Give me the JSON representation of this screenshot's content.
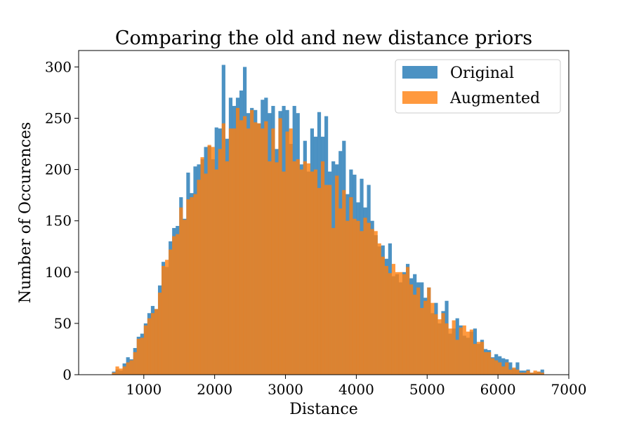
{
  "chart_data": {
    "type": "bar",
    "title": "Comparing the old and new distance priors",
    "xlabel": "Distance",
    "ylabel": "Number of Occurences",
    "xlim": [
      80,
      7000
    ],
    "ylim": [
      0,
      316
    ],
    "xticks": [
      1000,
      2000,
      3000,
      4000,
      5000,
      6000,
      7000
    ],
    "yticks": [
      0,
      50,
      100,
      150,
      200,
      250,
      300
    ],
    "grid": false,
    "legend_placement": "top-right",
    "bin_width": 50,
    "bin_start": 550,
    "series": [
      {
        "name": "Original",
        "color": "#1f77b4",
        "alpha": 0.8,
        "values": [
          3,
          5,
          4,
          11,
          17,
          15,
          26,
          37,
          40,
          50,
          60,
          67,
          64,
          87,
          110,
          105,
          130,
          143,
          145,
          173,
          152,
          197,
          177,
          203,
          205,
          210,
          222,
          223,
          210,
          241,
          240,
          302,
          230,
          270,
          262,
          270,
          277,
          300,
          255,
          260,
          258,
          245,
          268,
          270,
          255,
          262,
          220,
          257,
          262,
          258,
          225,
          262,
          255,
          205,
          228,
          198,
          240,
          232,
          256,
          232,
          252,
          198,
          208,
          205,
          218,
          228,
          176,
          200,
          195,
          168,
          191,
          163,
          185,
          150,
          136,
          125,
          126,
          113,
          128,
          96,
          98,
          90,
          100,
          108,
          94,
          98,
          90,
          90,
          75,
          85,
          60,
          70,
          50,
          62,
          72,
          40,
          45,
          55,
          48,
          38,
          36,
          42,
          45,
          30,
          34,
          25,
          24,
          17,
          20,
          18,
          16,
          15,
          12,
          6,
          12,
          4,
          4,
          5,
          2,
          2,
          3,
          5
        ]
      },
      {
        "name": "Augmented",
        "color": "#ff7f0e",
        "alpha": 0.8,
        "values": [
          2,
          8,
          6,
          8,
          12,
          14,
          22,
          35,
          36,
          48,
          55,
          60,
          64,
          80,
          106,
          112,
          122,
          135,
          137,
          163,
          151,
          171,
          173,
          176,
          190,
          212,
          196,
          224,
          222,
          200,
          220,
          245,
          208,
          240,
          240,
          260,
          248,
          252,
          240,
          258,
          246,
          245,
          240,
          247,
          208,
          240,
          207,
          250,
          198,
          237,
          240,
          208,
          210,
          200,
          208,
          206,
          198,
          200,
          182,
          208,
          185,
          185,
          143,
          194,
          162,
          180,
          150,
          173,
          152,
          150,
          140,
          153,
          148,
          142,
          140,
          128,
          115,
          106,
          99,
          108,
          100,
          100,
          98,
          105,
          88,
          78,
          85,
          65,
          72,
          85,
          70,
          59,
          54,
          60,
          50,
          45,
          53,
          34,
          46,
          48,
          42,
          44,
          30,
          32,
          32,
          22,
          22,
          16,
          14,
          12,
          8,
          12,
          5,
          7,
          5,
          2,
          2,
          4,
          2,
          4,
          3,
          2
        ]
      }
    ]
  }
}
